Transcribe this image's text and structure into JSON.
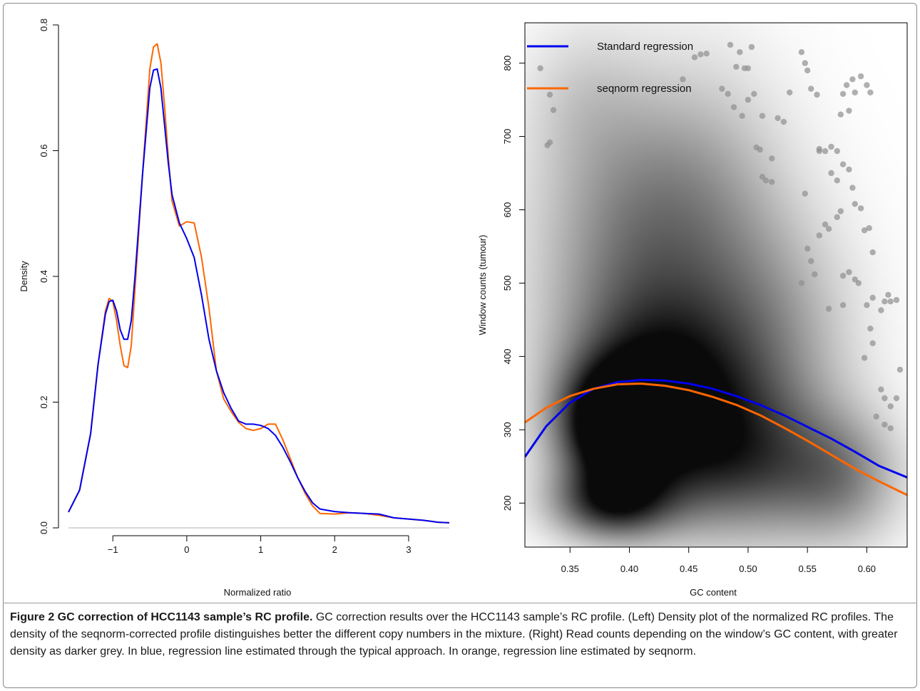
{
  "caption": {
    "title": "Figure 2 GC correction of HCC1143 sample’s RC profile.",
    "text": " GC correction results over the HCC1143 sample’s RC profile. (Left) Density plot of the normalized RC profiles. The density of the seqnorm-corrected profile distinguishes better the different copy numbers in the mixture. (Right) Read counts depending on the window’s GC content, with greater density as darker grey. In blue, regression line estimated through the typical approach. In orange, regression line estimated by seqnorm."
  },
  "colors": {
    "blue": "#0000ee",
    "orange": "#ff6600",
    "axis": "#000000"
  },
  "chart_data": [
    {
      "type": "line",
      "xlabel": "Normalized ratio",
      "ylabel": "Density",
      "xlim": [
        -1.6,
        3.55
      ],
      "ylim": [
        0,
        0.8
      ],
      "xticks": [
        -1,
        0,
        1,
        2,
        3
      ],
      "xtick_labels": [
        "−1",
        "0",
        "1",
        "2",
        "3"
      ],
      "yticks": [
        0.0,
        0.2,
        0.4,
        0.6,
        0.8
      ],
      "ytick_labels": [
        "0.0",
        "0.2",
        "0.4",
        "0.6",
        "0.8"
      ],
      "series": [
        {
          "color": "#ff6600",
          "x": [
            -1.6,
            -1.45,
            -1.3,
            -1.2,
            -1.1,
            -1.05,
            -1.0,
            -0.95,
            -0.9,
            -0.85,
            -0.8,
            -0.75,
            -0.7,
            -0.6,
            -0.5,
            -0.45,
            -0.4,
            -0.35,
            -0.3,
            -0.25,
            -0.2,
            -0.1,
            0.0,
            0.1,
            0.2,
            0.3,
            0.4,
            0.5,
            0.6,
            0.7,
            0.8,
            0.9,
            1.0,
            1.1,
            1.2,
            1.3,
            1.4,
            1.5,
            1.6,
            1.7,
            1.8,
            2.0,
            2.2,
            2.4,
            2.6,
            2.8,
            3.0,
            3.2,
            3.4,
            3.55
          ],
          "y": [
            0.025,
            0.06,
            0.15,
            0.26,
            0.345,
            0.365,
            0.36,
            0.33,
            0.29,
            0.258,
            0.255,
            0.29,
            0.38,
            0.56,
            0.73,
            0.765,
            0.77,
            0.74,
            0.67,
            0.59,
            0.52,
            0.48,
            0.487,
            0.485,
            0.43,
            0.35,
            0.25,
            0.205,
            0.185,
            0.168,
            0.158,
            0.155,
            0.158,
            0.165,
            0.165,
            0.14,
            0.11,
            0.08,
            0.055,
            0.035,
            0.023,
            0.022,
            0.024,
            0.023,
            0.02,
            0.016,
            0.014,
            0.012,
            0.009,
            0.008
          ]
        },
        {
          "color": "#0000ee",
          "x": [
            -1.6,
            -1.45,
            -1.3,
            -1.2,
            -1.1,
            -1.05,
            -1.0,
            -0.95,
            -0.9,
            -0.85,
            -0.8,
            -0.75,
            -0.7,
            -0.6,
            -0.5,
            -0.45,
            -0.4,
            -0.35,
            -0.3,
            -0.25,
            -0.2,
            -0.1,
            0.0,
            0.1,
            0.2,
            0.3,
            0.4,
            0.5,
            0.6,
            0.7,
            0.8,
            0.9,
            1.0,
            1.1,
            1.2,
            1.3,
            1.4,
            1.5,
            1.6,
            1.7,
            1.8,
            2.0,
            2.2,
            2.4,
            2.6,
            2.8,
            3.0,
            3.2,
            3.4,
            3.55
          ],
          "y": [
            0.025,
            0.06,
            0.15,
            0.26,
            0.34,
            0.36,
            0.362,
            0.345,
            0.315,
            0.3,
            0.3,
            0.33,
            0.4,
            0.56,
            0.7,
            0.728,
            0.73,
            0.7,
            0.64,
            0.58,
            0.53,
            0.485,
            0.46,
            0.43,
            0.37,
            0.3,
            0.25,
            0.215,
            0.19,
            0.17,
            0.165,
            0.165,
            0.163,
            0.158,
            0.147,
            0.128,
            0.105,
            0.08,
            0.058,
            0.04,
            0.03,
            0.026,
            0.024,
            0.023,
            0.022,
            0.016,
            0.014,
            0.012,
            0.009,
            0.008
          ]
        }
      ]
    },
    {
      "type": "scatter",
      "xlabel": "GC content",
      "ylabel": "Window counts (tumour)",
      "xlim": [
        0.312,
        0.634
      ],
      "ylim": [
        140,
        855
      ],
      "xticks": [
        0.35,
        0.4,
        0.45,
        0.5,
        0.55,
        0.6
      ],
      "xtick_labels": [
        "0.35",
        "0.40",
        "0.45",
        "0.50",
        "0.55",
        "0.60"
      ],
      "yticks": [
        200,
        300,
        400,
        500,
        600,
        700,
        800
      ],
      "ytick_labels": [
        "200",
        "300",
        "400",
        "500",
        "600",
        "700",
        "800"
      ],
      "legend": {
        "position": "top-left",
        "entries": [
          "Standard regression",
          "seqnorm regression"
        ]
      },
      "density_clusters": [
        {
          "x": 0.385,
          "y": 305,
          "sx": 0.03,
          "sy": 55,
          "w": 1.0
        },
        {
          "x": 0.385,
          "y": 200,
          "sx": 0.035,
          "sy": 35,
          "w": 0.75
        },
        {
          "x": 0.43,
          "y": 340,
          "sx": 0.055,
          "sy": 90,
          "w": 0.8
        },
        {
          "x": 0.41,
          "y": 480,
          "sx": 0.06,
          "sy": 130,
          "w": 0.45
        },
        {
          "x": 0.4,
          "y": 650,
          "sx": 0.06,
          "sy": 110,
          "w": 0.22
        },
        {
          "x": 0.5,
          "y": 250,
          "sx": 0.06,
          "sy": 70,
          "w": 0.55
        },
        {
          "x": 0.52,
          "y": 420,
          "sx": 0.05,
          "sy": 120,
          "w": 0.35
        },
        {
          "x": 0.47,
          "y": 620,
          "sx": 0.05,
          "sy": 130,
          "w": 0.2
        },
        {
          "x": 0.58,
          "y": 230,
          "sx": 0.035,
          "sy": 60,
          "w": 0.35
        },
        {
          "x": 0.36,
          "y": 760,
          "sx": 0.035,
          "sy": 70,
          "w": 0.12
        }
      ],
      "outlier_points": [
        [
          0.325,
          793
        ],
        [
          0.333,
          757
        ],
        [
          0.336,
          736
        ],
        [
          0.331,
          688
        ],
        [
          0.333,
          692
        ],
        [
          0.445,
          778
        ],
        [
          0.455,
          808
        ],
        [
          0.46,
          812
        ],
        [
          0.465,
          813
        ],
        [
          0.478,
          765
        ],
        [
          0.485,
          825
        ],
        [
          0.49,
          795
        ],
        [
          0.493,
          815
        ],
        [
          0.497,
          793
        ],
        [
          0.5,
          793
        ],
        [
          0.503,
          822
        ],
        [
          0.483,
          758
        ],
        [
          0.488,
          740
        ],
        [
          0.495,
          728
        ],
        [
          0.5,
          750
        ],
        [
          0.505,
          758
        ],
        [
          0.507,
          685
        ],
        [
          0.51,
          682
        ],
        [
          0.512,
          728
        ],
        [
          0.52,
          670
        ],
        [
          0.525,
          725
        ],
        [
          0.53,
          720
        ],
        [
          0.535,
          760
        ],
        [
          0.545,
          815
        ],
        [
          0.548,
          800
        ],
        [
          0.55,
          790
        ],
        [
          0.553,
          765
        ],
        [
          0.558,
          757
        ],
        [
          0.56,
          683
        ],
        [
          0.565,
          680
        ],
        [
          0.57,
          686
        ],
        [
          0.575,
          680
        ],
        [
          0.58,
          758
        ],
        [
          0.583,
          770
        ],
        [
          0.588,
          778
        ],
        [
          0.59,
          760
        ],
        [
          0.595,
          782
        ],
        [
          0.6,
          770
        ],
        [
          0.603,
          760
        ],
        [
          0.578,
          730
        ],
        [
          0.585,
          735
        ],
        [
          0.512,
          645
        ],
        [
          0.515,
          640
        ],
        [
          0.52,
          638
        ],
        [
          0.548,
          622
        ],
        [
          0.56,
          680
        ],
        [
          0.57,
          650
        ],
        [
          0.575,
          640
        ],
        [
          0.58,
          662
        ],
        [
          0.585,
          655
        ],
        [
          0.588,
          630
        ],
        [
          0.59,
          608
        ],
        [
          0.595,
          602
        ],
        [
          0.575,
          590
        ],
        [
          0.578,
          598
        ],
        [
          0.565,
          580
        ],
        [
          0.568,
          574
        ],
        [
          0.56,
          565
        ],
        [
          0.598,
          572
        ],
        [
          0.602,
          575
        ],
        [
          0.605,
          542
        ],
        [
          0.55,
          547
        ],
        [
          0.553,
          530
        ],
        [
          0.556,
          512
        ],
        [
          0.545,
          500
        ],
        [
          0.58,
          510
        ],
        [
          0.585,
          515
        ],
        [
          0.59,
          505
        ],
        [
          0.593,
          500
        ],
        [
          0.6,
          470
        ],
        [
          0.605,
          480
        ],
        [
          0.612,
          463
        ],
        [
          0.615,
          475
        ],
        [
          0.62,
          475
        ],
        [
          0.625,
          477
        ],
        [
          0.618,
          484
        ],
        [
          0.58,
          470
        ],
        [
          0.568,
          465
        ],
        [
          0.603,
          438
        ],
        [
          0.605,
          418
        ],
        [
          0.598,
          398
        ],
        [
          0.612,
          355
        ],
        [
          0.615,
          343
        ],
        [
          0.62,
          332
        ],
        [
          0.608,
          318
        ],
        [
          0.615,
          307
        ],
        [
          0.62,
          302
        ],
        [
          0.625,
          343
        ],
        [
          0.628,
          382
        ]
      ],
      "series": [
        {
          "name": "Standard regression",
          "color": "#0000ee",
          "x": [
            0.312,
            0.33,
            0.35,
            0.37,
            0.39,
            0.41,
            0.43,
            0.45,
            0.47,
            0.49,
            0.51,
            0.53,
            0.55,
            0.57,
            0.59,
            0.61,
            0.634
          ],
          "y": [
            263,
            305,
            337,
            356,
            365,
            368,
            367,
            363,
            356,
            346,
            334,
            320,
            304,
            288,
            270,
            251,
            235
          ]
        },
        {
          "name": "seqnorm regression",
          "color": "#ff6600",
          "x": [
            0.312,
            0.33,
            0.35,
            0.37,
            0.39,
            0.41,
            0.43,
            0.45,
            0.47,
            0.49,
            0.51,
            0.53,
            0.55,
            0.57,
            0.59,
            0.61,
            0.634
          ],
          "y": [
            310,
            330,
            346,
            356,
            362,
            363,
            360,
            354,
            345,
            334,
            320,
            303,
            285,
            266,
            247,
            230,
            211
          ]
        }
      ]
    }
  ]
}
